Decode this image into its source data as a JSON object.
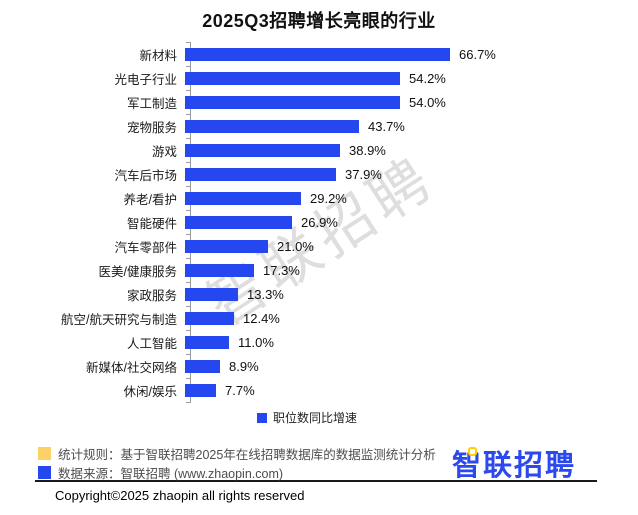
{
  "chart_data": {
    "type": "bar",
    "orientation": "horizontal",
    "title": "2025Q3招聘增长亮眼的行业",
    "categories": [
      "新材料",
      "光电子行业",
      "军工制造",
      "宠物服务",
      "游戏",
      "汽车后市场",
      "养老/看护",
      "智能硬件",
      "汽车零部件",
      "医美/健康服务",
      "家政服务",
      "航空/航天研究与制造",
      "人工智能",
      "新媒体/社交网络",
      "休闲/娱乐"
    ],
    "values": [
      66.7,
      54.2,
      54.0,
      43.7,
      38.9,
      37.9,
      29.2,
      26.9,
      21.0,
      17.3,
      13.3,
      12.4,
      11.0,
      8.9,
      7.7
    ],
    "value_labels": [
      "66.7%",
      "54.2%",
      "54.0%",
      "43.7%",
      "38.9%",
      "37.9%",
      "29.2%",
      "26.9%",
      "21.0%",
      "17.3%",
      "13.3%",
      "12.4%",
      "11.0%",
      "8.9%",
      "7.7%"
    ],
    "legend": [
      "职位数同比增速"
    ],
    "legend_position": "bottom",
    "xlim": [
      0,
      70
    ],
    "grid": false,
    "bar_color": "#2447f0"
  },
  "watermark": {
    "text": "智联招聘"
  },
  "footnotes": [
    {
      "marker_color": "#fbd168",
      "text": "统计规则：基于智联招聘2025年在线招聘数据库的数据监测统计分析"
    },
    {
      "marker_color": "#2447f0",
      "text": "数据来源：智联招聘 (www.zhaopin.com)"
    }
  ],
  "logo": {
    "text": "智联招聘",
    "color": "#2b49ee",
    "accent_color": "#ffd100"
  },
  "copyright": "Copyright©2025 zhaopin all rights reserved"
}
